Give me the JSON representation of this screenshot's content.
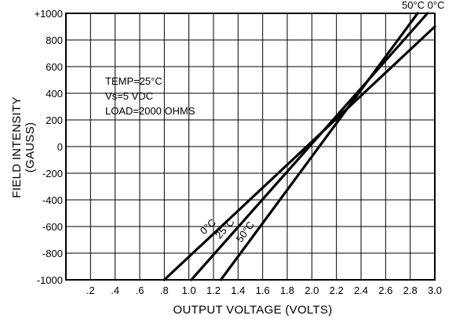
{
  "chart_data": {
    "type": "line",
    "xlabel": "OUTPUT VOLTAGE (VOLTS)",
    "ylabel": "FIELD INTENSITY",
    "ylabel_unit": "(GAUSS)",
    "xlim": [
      0,
      3.0
    ],
    "ylim": [
      -1000,
      1000
    ],
    "grid": true,
    "x_ticks": [
      0.2,
      0.4,
      0.6,
      0.8,
      1.0,
      1.2,
      1.4,
      1.6,
      1.8,
      2.0,
      2.2,
      2.4,
      2.6,
      2.8,
      3.0
    ],
    "x_tick_labels": [
      ".2",
      ".4",
      ".6",
      ".8",
      "1.0",
      "1.2",
      "1.4",
      "1.6",
      "1.8",
      "2.0",
      "2.2",
      "2.4",
      "2.6",
      "2.8",
      "3.0"
    ],
    "y_ticks": [
      -1000,
      -800,
      -600,
      -400,
      -200,
      0,
      200,
      400,
      600,
      800,
      1000
    ],
    "y_tick_labels": [
      "-1000",
      "-800",
      "-600",
      "-400",
      "-200",
      "0",
      "200",
      "400",
      "600",
      "800",
      "+1000"
    ],
    "annotations": [
      "TEMP=25°C",
      "Vs=5 VDC",
      "LOAD=2000 OHMS"
    ],
    "series": [
      {
        "name": "0°C",
        "x": [
          0.8,
          3.0
        ],
        "y": [
          -1000,
          900
        ]
      },
      {
        "name": "25°C",
        "x": [
          1.02,
          2.94
        ],
        "y": [
          -1000,
          1000
        ]
      },
      {
        "name": "50°C",
        "x": [
          1.26,
          2.86
        ],
        "y": [
          -1000,
          1000
        ]
      }
    ],
    "top_right_fragment": "50°C  0°C"
  }
}
